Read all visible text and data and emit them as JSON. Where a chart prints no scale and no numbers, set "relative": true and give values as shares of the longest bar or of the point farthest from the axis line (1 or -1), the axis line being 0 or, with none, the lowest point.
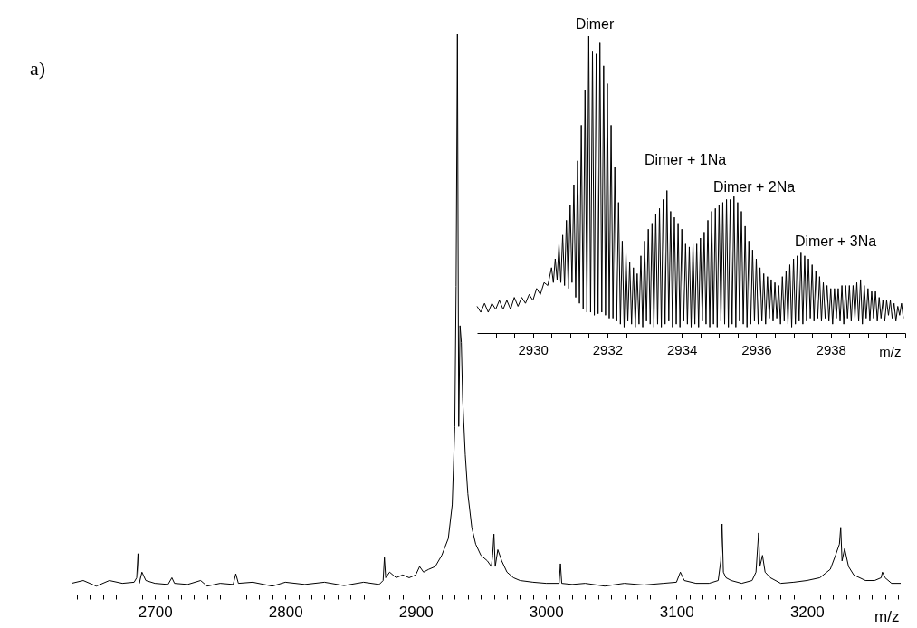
{
  "chart_data": [
    {
      "type": "line",
      "relative": true,
      "xlabel": "m/z",
      "annotations": [
        "a)"
      ],
      "grid": false,
      "xlim": [
        2636,
        3272
      ],
      "xticks": [
        {
          "value": 2640,
          "label": null
        },
        {
          "value": 2650,
          "label": null
        },
        {
          "value": 2660,
          "label": null
        },
        {
          "value": 2670,
          "label": null
        },
        {
          "value": 2680,
          "label": null
        },
        {
          "value": 2690,
          "label": null
        },
        2700,
        {
          "value": 2710,
          "label": null
        },
        {
          "value": 2720,
          "label": null
        },
        {
          "value": 2730,
          "label": null
        },
        {
          "value": 2740,
          "label": null
        },
        {
          "value": 2750,
          "label": null
        },
        {
          "value": 2760,
          "label": null
        },
        {
          "value": 2770,
          "label": null
        },
        {
          "value": 2780,
          "label": null
        },
        {
          "value": 2790,
          "label": null
        },
        2800,
        {
          "value": 2810,
          "label": null
        },
        {
          "value": 2820,
          "label": null
        },
        {
          "value": 2830,
          "label": null
        },
        {
          "value": 2840,
          "label": null
        },
        {
          "value": 2850,
          "label": null
        },
        {
          "value": 2860,
          "label": null
        },
        {
          "value": 2870,
          "label": null
        },
        {
          "value": 2880,
          "label": null
        },
        {
          "value": 2890,
          "label": null
        },
        2900,
        {
          "value": 2910,
          "label": null
        },
        {
          "value": 2920,
          "label": null
        },
        {
          "value": 2930,
          "label": null
        },
        {
          "value": 2940,
          "label": null
        },
        {
          "value": 2950,
          "label": null
        },
        {
          "value": 2960,
          "label": null
        },
        {
          "value": 2970,
          "label": null
        },
        {
          "value": 2980,
          "label": null
        },
        {
          "value": 2990,
          "label": null
        },
        3000,
        {
          "value": 3010,
          "label": null
        },
        {
          "value": 3020,
          "label": null
        },
        {
          "value": 3030,
          "label": null
        },
        {
          "value": 3040,
          "label": null
        },
        {
          "value": 3050,
          "label": null
        },
        {
          "value": 3060,
          "label": null
        },
        {
          "value": 3070,
          "label": null
        },
        {
          "value": 3080,
          "label": null
        },
        {
          "value": 3090,
          "label": null
        },
        3100,
        {
          "value": 3110,
          "label": null
        },
        {
          "value": 3120,
          "label": null
        },
        {
          "value": 3130,
          "label": null
        },
        {
          "value": 3140,
          "label": null
        },
        {
          "value": 3150,
          "label": null
        },
        {
          "value": 3160,
          "label": null
        },
        {
          "value": 3170,
          "label": null
        },
        {
          "value": 3180,
          "label": null
        },
        {
          "value": 3190,
          "label": null
        },
        3200,
        {
          "value": 3210,
          "label": null
        },
        {
          "value": 3220,
          "label": null
        },
        {
          "value": 3230,
          "label": null
        },
        {
          "value": 3240,
          "label": null
        },
        {
          "value": 3250,
          "label": null
        },
        {
          "value": 3260,
          "label": null
        },
        {
          "value": 3270,
          "label": null
        }
      ],
      "series": [
        {
          "color": "#000000",
          "x": [
            2636,
            2645,
            2655,
            2665,
            2675,
            2684,
            2686,
            2687,
            2688,
            2690,
            2693,
            2700,
            2710,
            2713,
            2715,
            2725,
            2735,
            2740,
            2750,
            2760,
            2762,
            2764,
            2775,
            2790,
            2800,
            2815,
            2830,
            2845,
            2860,
            2872,
            2875,
            2876,
            2877,
            2880,
            2885,
            2890,
            2895,
            2900,
            2903,
            2906,
            2910,
            2915,
            2920,
            2925,
            2928,
            2930,
            2931,
            2932,
            2933,
            2934,
            2935,
            2936,
            2938,
            2940,
            2943,
            2946,
            2950,
            2955,
            2958,
            2959,
            2960,
            2961,
            2963,
            2966,
            2970,
            2975,
            2980,
            2990,
            3000,
            3010,
            3011,
            3012,
            3020,
            3030,
            3045,
            3060,
            3075,
            3090,
            3100,
            3103,
            3106,
            3115,
            3125,
            3132,
            3134,
            3135,
            3136,
            3138,
            3142,
            3150,
            3158,
            3161,
            3163,
            3164,
            3166,
            3168,
            3172,
            3180,
            3190,
            3200,
            3210,
            3218,
            3222,
            3225,
            3226,
            3227,
            3229,
            3232,
            3236,
            3245,
            3252,
            3257,
            3258,
            3260,
            3265,
            3272
          ],
          "values": [
            0.02,
            0.025,
            0.015,
            0.025,
            0.02,
            0.022,
            0.03,
            0.073,
            0.02,
            0.04,
            0.025,
            0.02,
            0.018,
            0.03,
            0.02,
            0.018,
            0.025,
            0.015,
            0.02,
            0.018,
            0.037,
            0.02,
            0.022,
            0.015,
            0.022,
            0.018,
            0.022,
            0.016,
            0.022,
            0.018,
            0.025,
            0.066,
            0.03,
            0.04,
            0.03,
            0.035,
            0.03,
            0.035,
            0.05,
            0.04,
            0.045,
            0.05,
            0.07,
            0.1,
            0.16,
            0.3,
            0.55,
            1.0,
            0.3,
            0.48,
            0.45,
            0.35,
            0.25,
            0.18,
            0.12,
            0.09,
            0.07,
            0.06,
            0.05,
            0.07,
            0.108,
            0.05,
            0.08,
            0.06,
            0.04,
            0.03,
            0.025,
            0.022,
            0.02,
            0.02,
            0.055,
            0.02,
            0.018,
            0.02,
            0.015,
            0.02,
            0.017,
            0.02,
            0.022,
            0.04,
            0.025,
            0.02,
            0.02,
            0.025,
            0.06,
            0.126,
            0.04,
            0.03,
            0.025,
            0.02,
            0.025,
            0.04,
            0.11,
            0.05,
            0.07,
            0.04,
            0.03,
            0.02,
            0.022,
            0.025,
            0.03,
            0.045,
            0.07,
            0.09,
            0.12,
            0.06,
            0.082,
            0.05,
            0.035,
            0.025,
            0.025,
            0.03,
            0.04,
            0.03,
            0.02,
            0.02
          ]
        }
      ]
    },
    {
      "type": "line",
      "relative": true,
      "xlabel": "m/z",
      "grid": false,
      "xlim": [
        2928.5,
        2940
      ],
      "xticks": [
        {
          "value": 2929,
          "label": null
        },
        {
          "value": 2929.5,
          "label": null
        },
        2930,
        {
          "value": 2930.5,
          "label": null
        },
        {
          "value": 2931,
          "label": null
        },
        {
          "value": 2931.5,
          "label": null
        },
        2932,
        {
          "value": 2932.5,
          "label": null
        },
        {
          "value": 2933,
          "label": null
        },
        {
          "value": 2933.5,
          "label": null
        },
        2934,
        {
          "value": 2934.5,
          "label": null
        },
        {
          "value": 2935,
          "label": null
        },
        {
          "value": 2935.5,
          "label": null
        },
        2936,
        {
          "value": 2936.5,
          "label": null
        },
        {
          "value": 2937,
          "label": null
        },
        {
          "value": 2937.5,
          "label": null
        },
        2938,
        {
          "value": 2938.5,
          "label": null
        },
        {
          "value": 2939,
          "label": null
        },
        {
          "value": 2939.5,
          "label": null
        },
        {
          "value": 2940,
          "label": null
        }
      ],
      "annotations": [
        "Dimer",
        "Dimer + 1Na",
        "Dimer + 2Na",
        "Dimer + 3Na"
      ],
      "series": [
        {
          "color": "#000000",
          "x": [
            2928.5,
            2928.6,
            2928.7,
            2928.8,
            2928.9,
            2929.0,
            2929.1,
            2929.2,
            2929.3,
            2929.4,
            2929.5,
            2929.6,
            2929.7,
            2929.8,
            2929.9,
            2930.0,
            2930.1,
            2930.2,
            2930.3,
            2930.4,
            2930.5,
            2930.55,
            2930.6,
            2930.65,
            2930.7,
            2930.75,
            2930.8,
            2930.85,
            2930.9,
            2930.95,
            2931.0,
            2931.05,
            2931.1,
            2931.15,
            2931.2,
            2931.25,
            2931.3,
            2931.35,
            2931.4,
            2931.45,
            2931.5,
            2931.55,
            2931.6,
            2931.65,
            2931.7,
            2931.75,
            2931.8,
            2931.85,
            2931.9,
            2931.95,
            2932.0,
            2932.05,
            2932.1,
            2932.15,
            2932.2,
            2932.25,
            2932.3,
            2932.35,
            2932.4,
            2932.45,
            2932.5,
            2932.55,
            2932.6,
            2932.65,
            2932.7,
            2932.75,
            2932.8,
            2932.85,
            2932.9,
            2932.95,
            2933.0,
            2933.05,
            2933.1,
            2933.15,
            2933.2,
            2933.25,
            2933.3,
            2933.35,
            2933.4,
            2933.45,
            2933.5,
            2933.55,
            2933.6,
            2933.65,
            2933.7,
            2933.75,
            2933.8,
            2933.85,
            2933.9,
            2933.95,
            2934.0,
            2934.05,
            2934.1,
            2934.15,
            2934.2,
            2934.25,
            2934.3,
            2934.35,
            2934.4,
            2934.45,
            2934.5,
            2934.55,
            2934.6,
            2934.65,
            2934.7,
            2934.75,
            2934.8,
            2934.85,
            2934.9,
            2934.95,
            2935.0,
            2935.05,
            2935.1,
            2935.15,
            2935.2,
            2935.25,
            2935.3,
            2935.35,
            2935.4,
            2935.45,
            2935.5,
            2935.55,
            2935.6,
            2935.65,
            2935.7,
            2935.75,
            2935.8,
            2935.85,
            2935.9,
            2935.95,
            2936.0,
            2936.05,
            2936.1,
            2936.15,
            2936.2,
            2936.25,
            2936.3,
            2936.35,
            2936.4,
            2936.45,
            2936.5,
            2936.55,
            2936.6,
            2936.65,
            2936.7,
            2936.75,
            2936.8,
            2936.85,
            2936.9,
            2936.95,
            2937.0,
            2937.05,
            2937.1,
            2937.15,
            2937.2,
            2937.25,
            2937.3,
            2937.35,
            2937.4,
            2937.45,
            2937.5,
            2937.55,
            2937.6,
            2937.65,
            2937.7,
            2937.75,
            2937.8,
            2937.85,
            2937.9,
            2937.95,
            2938.0,
            2938.05,
            2938.1,
            2938.15,
            2938.2,
            2938.25,
            2938.3,
            2938.35,
            2938.4,
            2938.45,
            2938.5,
            2938.55,
            2938.6,
            2938.65,
            2938.7,
            2938.75,
            2938.8,
            2938.85,
            2938.9,
            2938.95,
            2939.0,
            2939.05,
            2939.1,
            2939.15,
            2939.2,
            2939.25,
            2939.3,
            2939.35,
            2939.4,
            2939.45,
            2939.5,
            2939.55,
            2939.6,
            2939.65,
            2939.7,
            2939.75,
            2939.8,
            2939.85,
            2939.9,
            2939.95
          ],
          "values": [
            0.09,
            0.07,
            0.1,
            0.07,
            0.1,
            0.08,
            0.11,
            0.08,
            0.11,
            0.08,
            0.12,
            0.09,
            0.12,
            0.1,
            0.13,
            0.11,
            0.15,
            0.13,
            0.17,
            0.16,
            0.22,
            0.17,
            0.25,
            0.18,
            0.3,
            0.17,
            0.33,
            0.16,
            0.38,
            0.15,
            0.43,
            0.17,
            0.5,
            0.12,
            0.58,
            0.1,
            0.7,
            0.08,
            0.82,
            0.07,
            1.0,
            0.07,
            0.95,
            0.06,
            0.94,
            0.065,
            0.98,
            0.07,
            0.9,
            0.06,
            0.84,
            0.05,
            0.7,
            0.05,
            0.56,
            0.04,
            0.44,
            0.03,
            0.31,
            0.02,
            0.27,
            0.04,
            0.24,
            0.03,
            0.22,
            0.02,
            0.2,
            0.03,
            0.26,
            0.02,
            0.31,
            0.04,
            0.35,
            0.03,
            0.37,
            0.02,
            0.4,
            0.03,
            0.42,
            0.02,
            0.45,
            0.03,
            0.48,
            0.04,
            0.41,
            0.02,
            0.39,
            0.03,
            0.37,
            0.02,
            0.35,
            0.04,
            0.3,
            0.03,
            0.29,
            0.02,
            0.3,
            0.03,
            0.3,
            0.02,
            0.32,
            0.04,
            0.34,
            0.03,
            0.38,
            0.02,
            0.41,
            0.03,
            0.42,
            0.02,
            0.43,
            0.04,
            0.44,
            0.03,
            0.45,
            0.02,
            0.45,
            0.03,
            0.46,
            0.02,
            0.44,
            0.04,
            0.41,
            0.03,
            0.36,
            0.02,
            0.31,
            0.03,
            0.28,
            0.04,
            0.25,
            0.03,
            0.22,
            0.04,
            0.2,
            0.03,
            0.19,
            0.05,
            0.18,
            0.04,
            0.17,
            0.05,
            0.16,
            0.03,
            0.19,
            0.04,
            0.21,
            0.03,
            0.23,
            0.02,
            0.25,
            0.03,
            0.26,
            0.04,
            0.27,
            0.03,
            0.26,
            0.04,
            0.25,
            0.05,
            0.23,
            0.04,
            0.21,
            0.05,
            0.19,
            0.04,
            0.17,
            0.05,
            0.16,
            0.04,
            0.15,
            0.03,
            0.15,
            0.05,
            0.15,
            0.04,
            0.16,
            0.03,
            0.16,
            0.05,
            0.16,
            0.04,
            0.16,
            0.05,
            0.17,
            0.04,
            0.18,
            0.03,
            0.16,
            0.05,
            0.15,
            0.04,
            0.14,
            0.05,
            0.14,
            0.04,
            0.12,
            0.05,
            0.11,
            0.04,
            0.11,
            0.06,
            0.11,
            0.05,
            0.1,
            0.04,
            0.09,
            0.06,
            0.1,
            0.05
          ]
        }
      ]
    }
  ]
}
